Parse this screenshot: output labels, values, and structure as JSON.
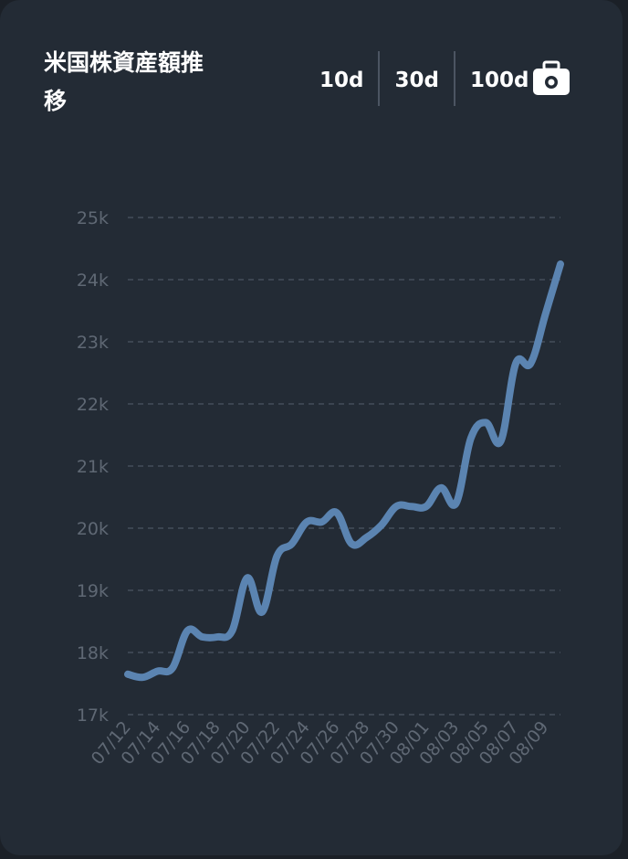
{
  "header": {
    "title": "米国株資産額推移",
    "ranges": [
      "10d",
      "30d",
      "100d"
    ]
  },
  "icons": {
    "camera": "camera-icon"
  },
  "colors": {
    "background": "#232b35",
    "line": "#5b84b1",
    "grid": "#454e5b",
    "tick": "#5f6874"
  },
  "chart_data": {
    "type": "line",
    "title": "米国株資産額推移",
    "xlabel": "",
    "ylabel": "",
    "ylim": [
      17000,
      25000
    ],
    "y_ticks": [
      17000,
      18000,
      19000,
      20000,
      21000,
      22000,
      23000,
      24000,
      25000
    ],
    "y_tick_labels": [
      "17k",
      "18k",
      "19k",
      "20k",
      "21k",
      "22k",
      "23k",
      "24k",
      "25k"
    ],
    "x_tick_labels": [
      "07/12",
      "07/14",
      "07/16",
      "07/18",
      "07/20",
      "07/22",
      "07/24",
      "07/26",
      "07/28",
      "07/30",
      "08/01",
      "08/03",
      "08/05",
      "08/07",
      "08/09"
    ],
    "grid": true,
    "series": [
      {
        "x": [
          "07/12",
          "07/13",
          "07/14",
          "07/15",
          "07/16",
          "07/17",
          "07/18",
          "07/19",
          "07/20",
          "07/21",
          "07/22",
          "07/23",
          "07/24",
          "07/25",
          "07/26",
          "07/27",
          "07/28",
          "07/29",
          "07/30",
          "07/31",
          "08/01",
          "08/02",
          "08/03",
          "08/04",
          "08/05",
          "08/06",
          "08/07",
          "08/08",
          "08/09",
          "08/10"
        ],
        "values": [
          17650,
          17600,
          17700,
          17750,
          18350,
          18250,
          18250,
          18350,
          19200,
          18650,
          19550,
          19750,
          20100,
          20100,
          20250,
          19750,
          19850,
          20050,
          20350,
          20350,
          20350,
          20650,
          20400,
          21450,
          21700,
          21400,
          22650,
          22650,
          23450,
          24250
        ]
      }
    ]
  }
}
